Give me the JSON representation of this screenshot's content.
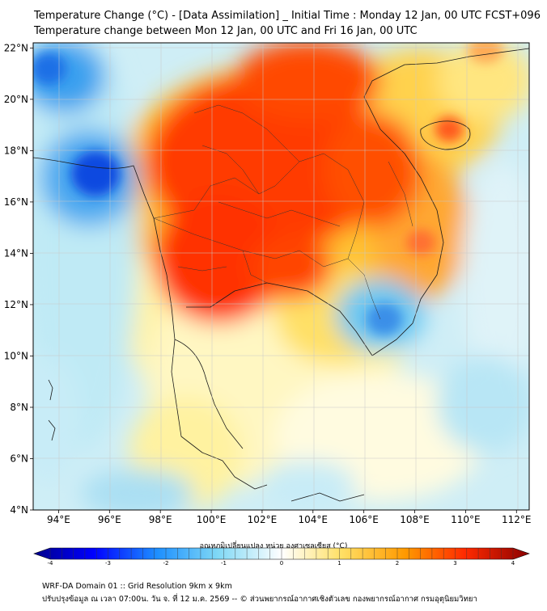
{
  "header": {
    "title_line1": "Temperature Change (°C) - [Data Assimilation] _ Initial Time : Monday 12 Jan, 00 UTC FCST+096",
    "title_line2": "Temperature change between Mon 12 Jan, 00 UTC and Fri 16 Jan, 00 UTC"
  },
  "map": {
    "lat_labels": [
      "22°N",
      "20°N",
      "18°N",
      "16°N",
      "14°N",
      "12°N",
      "10°N",
      "8°N",
      "6°N",
      "4°N"
    ],
    "lon_labels": [
      "94°E",
      "96°E",
      "98°E",
      "100°E",
      "102°E",
      "104°E",
      "106°E",
      "108°E",
      "110°E",
      "112°E"
    ],
    "lat_values": [
      22,
      20,
      18,
      16,
      14,
      12,
      10,
      8,
      6,
      4
    ],
    "lon_values": [
      94,
      96,
      98,
      100,
      102,
      104,
      106,
      108,
      110,
      112
    ],
    "extent": {
      "lon_min": 93,
      "lon_max": 112.5,
      "lat_min": 4,
      "lat_max": 22.2
    }
  },
  "colorbar": {
    "label": "อุณหภูมิเปลี่ยนแปลง หน่วย องศาเซลเซียส (°C)",
    "ticks": [
      "-4",
      "-3",
      "-2",
      "-1",
      "0",
      "1",
      "2",
      "3",
      "4"
    ],
    "tick_values": [
      -4,
      -3,
      -2,
      -1,
      0,
      1,
      2,
      3,
      4
    ],
    "colors": {
      "cold": "#00008b",
      "cool": "#1e90ff",
      "light": "#7fd8f5",
      "neutral": "#ffffff",
      "warm": "#ffe066",
      "hot": "#ff2a00",
      "max": "#8b0000"
    }
  },
  "footer": {
    "line1": "WRF-DA Domain 01 :: Grid Resolution 9km x 9km",
    "line2": "ปรับปรุงข้อมูล ณ เวลา 07:00น. วัน จ. ที่ 12 ม.ค. 2569 -- © ส่วนพยากรณ์อากาศเชิงตัวเลข กองพยากรณ์อากาศ กรมอุตุนิยมวิทยา"
  }
}
